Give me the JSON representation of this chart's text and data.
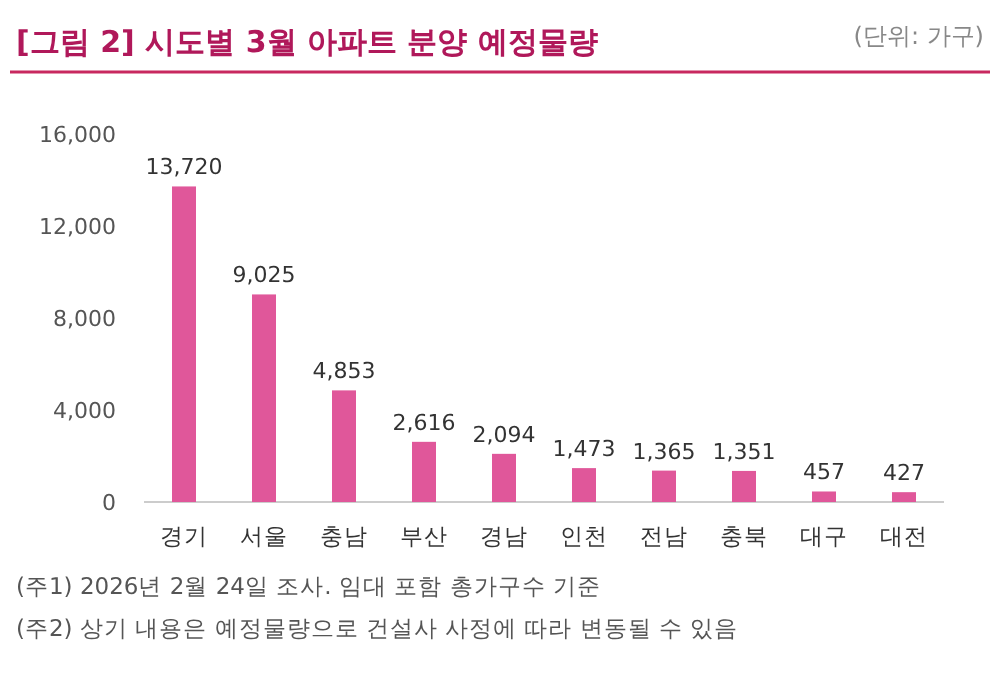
{
  "chart_data": {
    "type": "bar",
    "title": "[그림 2] 시도별 3월 아파트 분양 예정물량",
    "categories": [
      "경기",
      "서울",
      "충남",
      "부산",
      "경남",
      "인천",
      "전남",
      "충북",
      "대구",
      "대전"
    ],
    "values": [
      13720,
      9025,
      4853,
      2616,
      2094,
      1473,
      1365,
      1351,
      457,
      427
    ],
    "color": "#e0579a",
    "ylim": [
      0,
      16000
    ],
    "yticks": [
      {
        "value": 0,
        "label": "0"
      },
      {
        "value": 4000,
        "label": "4,000"
      },
      {
        "value": 8000,
        "label": "8,000"
      },
      {
        "value": 12000,
        "label": "12,000"
      },
      {
        "value": 16000,
        "label": "16,000"
      }
    ],
    "value_labels": [
      "13,720",
      "9,025",
      "4,853",
      "2,616",
      "2,094",
      "1,473",
      "1,365",
      "1,351",
      "457",
      "427"
    ],
    "annotations": [
      "(단위: 가구)",
      "(주1) 2026년 2월 24일 조사. 임대 포함 총가구수 기준",
      "(주2) 상기 내용은 예정물량으로 건설사 사정에 따라 변동될 수 있음"
    ]
  }
}
